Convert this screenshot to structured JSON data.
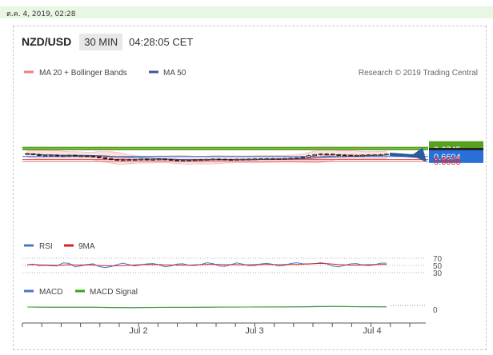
{
  "top_bar": {
    "date_text": "ต.ค. 4, 2019, 02:28"
  },
  "header": {
    "symbol": "NZD/USD",
    "timeframe": "30 MIN",
    "time": "04:28:05 CET"
  },
  "legend": {
    "ma20_label": "MA 20 + Bollinger Bands",
    "ma50_label": "MA 50",
    "ma20_color": "#f08080",
    "ma50_color": "#3b5a9a",
    "credit": "Research © 2019 Trading Central"
  },
  "chart_data": {
    "type": "candlestick",
    "price_axis": {
      "min": 0.665,
      "max": 0.6765
    },
    "levels": [
      {
        "value": "0.6758",
        "style": "resistance",
        "color": "#5aa020"
      },
      {
        "value": "0.6745",
        "style": "resistance",
        "color": "#5aa020"
      },
      {
        "value": "0.6710",
        "style": "current",
        "color": "#222222"
      },
      {
        "value": "0.6694",
        "style": "pivot",
        "color": "#2a6ed8"
      },
      {
        "value": "0.6673",
        "style": "support",
        "color": "#e86060"
      },
      {
        "value": "0.6660",
        "style": "support",
        "color": "#e86060"
      }
    ],
    "closes": [
      0.6713,
      0.6709,
      0.6701,
      0.6703,
      0.6704,
      0.6697,
      0.6699,
      0.6703,
      0.6698,
      0.6698,
      0.6696,
      0.6694,
      0.6685,
      0.6678,
      0.6673,
      0.667,
      0.6671,
      0.6672,
      0.6673,
      0.6675,
      0.6674,
      0.6674,
      0.6676,
      0.6673,
      0.6669,
      0.6666,
      0.6666,
      0.6667,
      0.667,
      0.6671,
      0.6674,
      0.6676,
      0.6675,
      0.6673,
      0.6672,
      0.6674,
      0.6675,
      0.6676,
      0.6677,
      0.6678,
      0.6678,
      0.6679,
      0.6679,
      0.668,
      0.6682,
      0.6685,
      0.669,
      0.67,
      0.6708,
      0.6712,
      0.6711,
      0.6707,
      0.6704,
      0.6703,
      0.6701,
      0.6702,
      0.6704,
      0.6706,
      0.6706,
      0.6707,
      0.6711
    ],
    "projection": {
      "from": 0.6711,
      "to": 0.6758
    },
    "x_labels": [
      "Jul 2",
      "Jul 3",
      "Jul 4"
    ],
    "rsi": {
      "legend": [
        "RSI",
        "9MA"
      ],
      "colors": [
        "#4a78c8",
        "#d82020"
      ],
      "levels": [
        "70",
        "50",
        "30"
      ]
    },
    "macd": {
      "legend": [
        "MACD",
        "MACD Signal"
      ],
      "colors": [
        "#4a78c8",
        "#3aa020"
      ],
      "zero_label": "0"
    }
  }
}
